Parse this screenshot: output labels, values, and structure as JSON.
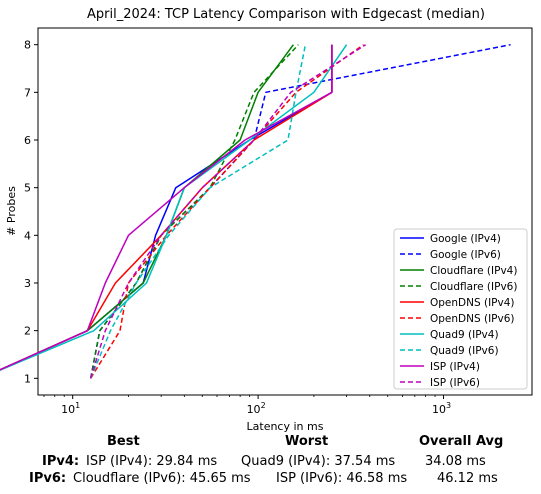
{
  "chart_data": {
    "type": "line",
    "title": "April_2024: TCP Latency Comparison with Edgecast (median)",
    "xlabel": "Latency in ms",
    "ylabel": "# Probes",
    "xscale": "log",
    "xlim": [
      6.5,
      3000
    ],
    "ylim": [
      0.65,
      8.35
    ],
    "yticks": [
      "1",
      "2",
      "3",
      "4",
      "5",
      "6",
      "7",
      "8"
    ],
    "xticks": [
      {
        "value": 10,
        "label": "10",
        "sup": "1"
      },
      {
        "value": 100,
        "label": "10",
        "sup": "2"
      },
      {
        "value": 1000,
        "label": "10",
        "sup": "3"
      }
    ],
    "legend_position": "lower-right",
    "series": [
      {
        "name": "Google (IPv4)",
        "color": "#0000ff",
        "dash": "solid",
        "points": [
          [
            3.2,
            1
          ],
          [
            12,
            2
          ],
          [
            24,
            3
          ],
          [
            28,
            4
          ],
          [
            36,
            5
          ],
          [
            90,
            6
          ],
          [
            250,
            7
          ],
          [
            250,
            8
          ]
        ]
      },
      {
        "name": "Google (IPv6)",
        "color": "#0000ff",
        "dash": "dashed",
        "points": [
          [
            12.5,
            1
          ],
          [
            14,
            2
          ],
          [
            22,
            3
          ],
          [
            30,
            4
          ],
          [
            55,
            5
          ],
          [
            95,
            6
          ],
          [
            110,
            7
          ],
          [
            2300,
            8
          ]
        ]
      },
      {
        "name": "Cloudflare (IPv4)",
        "color": "#008000",
        "dash": "solid",
        "points": [
          [
            3.2,
            1
          ],
          [
            12,
            2
          ],
          [
            24,
            3
          ],
          [
            32,
            4
          ],
          [
            40,
            5
          ],
          [
            80,
            6
          ],
          [
            100,
            7
          ],
          [
            155,
            8
          ]
        ]
      },
      {
        "name": "Cloudflare (IPv6)",
        "color": "#008000",
        "dash": "dashed",
        "points": [
          [
            12.5,
            1
          ],
          [
            14,
            2
          ],
          [
            22,
            3
          ],
          [
            30,
            4
          ],
          [
            55,
            5
          ],
          [
            75,
            6
          ],
          [
            95,
            7
          ],
          [
            165,
            8
          ]
        ]
      },
      {
        "name": "OpenDNS (IPv4)",
        "color": "#ff0000",
        "dash": "solid",
        "points": [
          [
            3.2,
            1
          ],
          [
            12,
            2
          ],
          [
            17,
            3
          ],
          [
            30,
            4
          ],
          [
            50,
            5
          ],
          [
            95,
            6
          ],
          [
            250,
            7
          ],
          [
            250,
            8
          ]
        ]
      },
      {
        "name": "OpenDNS (IPv6)",
        "color": "#ff0000",
        "dash": "dashed",
        "points": [
          [
            12.5,
            1
          ],
          [
            18,
            2
          ],
          [
            20,
            3
          ],
          [
            32,
            4
          ],
          [
            55,
            5
          ],
          [
            95,
            6
          ],
          [
            160,
            7
          ],
          [
            370,
            8
          ]
        ]
      },
      {
        "name": "Quad9 (IPv4)",
        "color": "#00bfbf",
        "dash": "solid",
        "points": [
          [
            3.2,
            1
          ],
          [
            13,
            2
          ],
          [
            25,
            3
          ],
          [
            32,
            4
          ],
          [
            40,
            5
          ],
          [
            90,
            6
          ],
          [
            200,
            7
          ],
          [
            300,
            8
          ]
        ]
      },
      {
        "name": "Quad9 (IPv6)",
        "color": "#00bfbf",
        "dash": "dashed",
        "points": [
          [
            12.5,
            1
          ],
          [
            16,
            2
          ],
          [
            22,
            3
          ],
          [
            33,
            4
          ],
          [
            55,
            5
          ],
          [
            145,
            6
          ],
          [
            160,
            7
          ],
          [
            180,
            8
          ]
        ]
      },
      {
        "name": "ISP (IPv4)",
        "color": "#bf00bf",
        "dash": "solid",
        "points": [
          [
            3.2,
            1
          ],
          [
            12,
            2
          ],
          [
            15,
            3
          ],
          [
            20,
            4
          ],
          [
            40,
            5
          ],
          [
            85,
            6
          ],
          [
            250,
            7
          ],
          [
            250,
            8
          ]
        ]
      },
      {
        "name": "ISP (IPv6)",
        "color": "#bf00bf",
        "dash": "dashed",
        "points": [
          [
            12.5,
            1
          ],
          [
            15,
            2
          ],
          [
            20,
            3
          ],
          [
            30,
            4
          ],
          [
            50,
            5
          ],
          [
            95,
            6
          ],
          [
            150,
            7
          ],
          [
            380,
            8
          ]
        ]
      }
    ]
  },
  "summary": {
    "headers": {
      "best": "Best",
      "worst": "Worst",
      "avg": "Overall Avg"
    },
    "rows": [
      {
        "label": "IPv4:",
        "best": "ISP (IPv4): 29.84 ms",
        "worst": "Quad9 (IPv4): 37.54 ms",
        "avg": "34.08 ms"
      },
      {
        "label": "IPv6:",
        "best": "Cloudflare (IPv6): 45.65 ms",
        "worst": "ISP (IPv6): 46.58 ms",
        "avg": "46.12 ms"
      }
    ]
  }
}
